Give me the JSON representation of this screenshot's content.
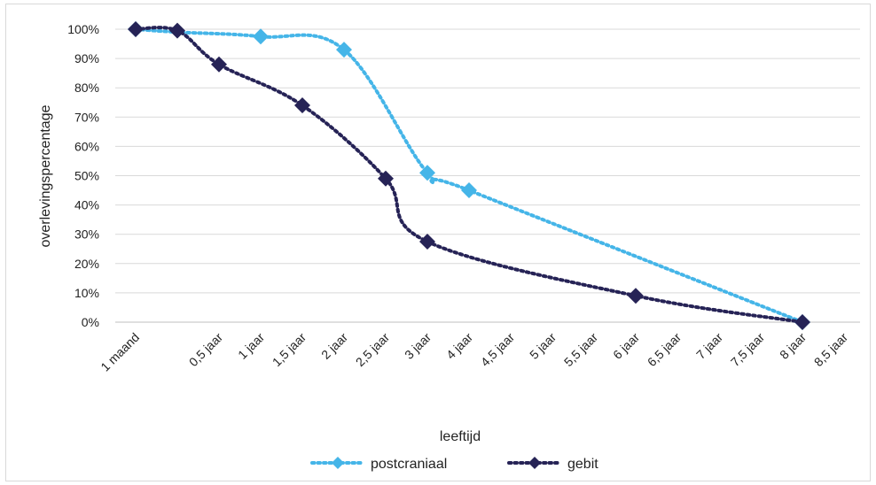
{
  "chart_data": {
    "type": "line",
    "title": "",
    "xlabel": "leeftijd",
    "ylabel": "overlevingspercentage",
    "categories": [
      "1 maand",
      "",
      "0,5 jaar",
      "1 jaar",
      "1,5 jaar",
      "2 jaar",
      "2,5 jaar",
      "3 jaar",
      "4 jaar",
      "4,5 jaar",
      "5 jaar",
      "5,5 jaar",
      "6 jaar",
      "6,5 jaar",
      "7 jaar",
      "7,5 jaar",
      "8 jaar",
      "8,5 jaar"
    ],
    "y_ticks": [
      "0%",
      "10%",
      "20%",
      "30%",
      "40%",
      "50%",
      "60%",
      "70%",
      "80%",
      "90%",
      "100%"
    ],
    "ylim": [
      0,
      100
    ],
    "grid": true,
    "legend_position": "bottom",
    "series": [
      {
        "name": "postcraniaal",
        "color": "#45b5e8",
        "line_style": "dotted",
        "marker": "diamond",
        "values": [
          100,
          99,
          null,
          97.5,
          null,
          93,
          null,
          51,
          45,
          null,
          null,
          null,
          null,
          null,
          null,
          null,
          0,
          null
        ],
        "marker_points": [
          0,
          3,
          5,
          7,
          8,
          16
        ]
      },
      {
        "name": "gebit",
        "color": "#262356",
        "line_style": "dotted",
        "marker": "diamond",
        "values": [
          100,
          99.5,
          88,
          null,
          74,
          null,
          49,
          27.5,
          null,
          null,
          null,
          null,
          9,
          null,
          null,
          null,
          0,
          null
        ],
        "marker_points": [
          0,
          1,
          2,
          4,
          6,
          7,
          12,
          16
        ]
      }
    ]
  }
}
